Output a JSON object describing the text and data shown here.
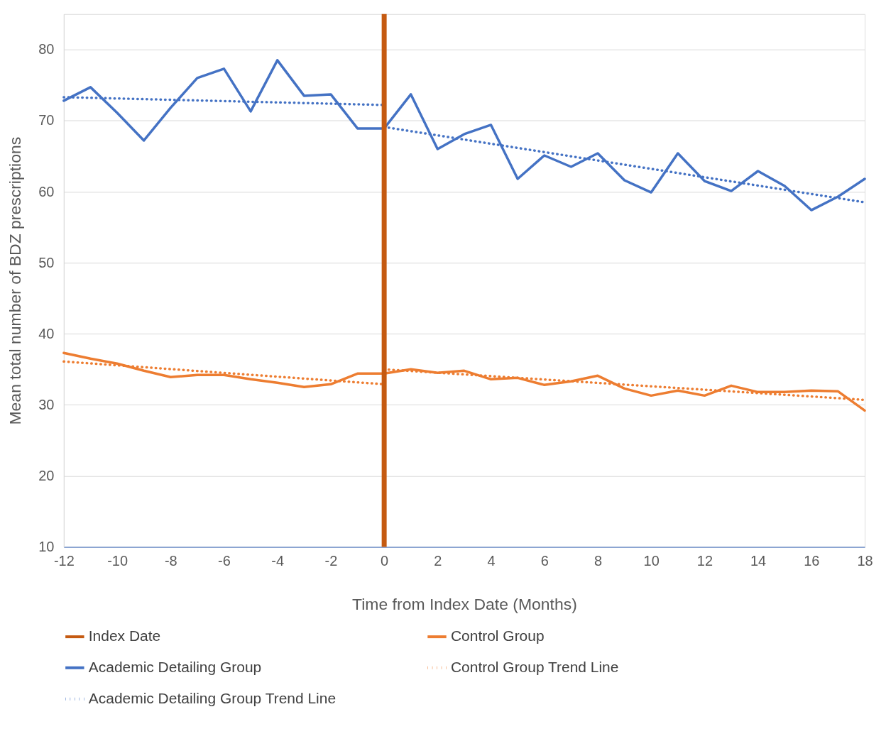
{
  "chart_data": {
    "type": "line",
    "xlabel": "Time from Index Date (Months)",
    "ylabel": "Mean total number of BDZ prescriptions",
    "x": [
      -12,
      -11,
      -10,
      -9,
      -8,
      -7,
      -6,
      -5,
      -4,
      -3,
      -2,
      -1,
      0,
      1,
      2,
      3,
      4,
      5,
      6,
      7,
      8,
      9,
      10,
      11,
      12,
      13,
      14,
      15,
      16,
      17,
      18
    ],
    "series": [
      {
        "name": "Control Group",
        "color": "#ed7d31",
        "line_style": "solid",
        "values": [
          37.3,
          36.5,
          35.8,
          34.8,
          33.9,
          34.2,
          34.2,
          33.6,
          33.1,
          32.5,
          32.9,
          34.4,
          34.4,
          35,
          34.5,
          34.8,
          33.6,
          33.8,
          32.8,
          33.3,
          34.1,
          32.3,
          31.3,
          32,
          31.3,
          32.7,
          31.8,
          31.8,
          32,
          31.9,
          29.2
        ]
      },
      {
        "name": "Academic Detailing Group",
        "color": "#4472c4",
        "line_style": "solid",
        "values": [
          72.8,
          74.7,
          71.1,
          67.2,
          71.8,
          76,
          77.3,
          71.3,
          78.5,
          73.5,
          73.7,
          68.9,
          68.9,
          73.7,
          66,
          68.1,
          69.4,
          61.8,
          65.1,
          63.5,
          65.4,
          61.6,
          59.9,
          65.4,
          61.5,
          60.1,
          62.9,
          60.8,
          57.4,
          59.3,
          61.8
        ]
      },
      {
        "name": "Control Group Trend Line",
        "color": "#ed7d31",
        "line_style": "dotted",
        "x": [
          -12,
          0
        ],
        "values": [
          36.1,
          32.9
        ]
      },
      {
        "name": "Academic Detailing Group Trend Line",
        "color": "#4472c4",
        "line_style": "dotted",
        "x": [
          -12,
          0
        ],
        "values": [
          73.3,
          72.2
        ]
      },
      {
        "color": "#ed7d31",
        "line_style": "dotted",
        "x": [
          0,
          18
        ],
        "values": [
          35,
          30.7
        ]
      },
      {
        "color": "#4472c4",
        "line_style": "dotted",
        "x": [
          0,
          18
        ],
        "values": [
          69.1,
          58.5
        ]
      }
    ],
    "ref_lines": [
      {
        "axis": "x",
        "value": 0,
        "label": "Index Date",
        "color": "#c55a11",
        "line_style": "solid"
      }
    ],
    "xlim": [
      -12,
      18
    ],
    "xticks": [
      -12,
      -10,
      -8,
      -6,
      -4,
      -2,
      0,
      2,
      4,
      6,
      8,
      10,
      12,
      14,
      16,
      18
    ],
    "ylim": [
      10,
      85
    ],
    "yticks": [
      10,
      20,
      30,
      40,
      50,
      60,
      70,
      80
    ],
    "grid": "y",
    "legend": "bottom",
    "marker": "none"
  }
}
